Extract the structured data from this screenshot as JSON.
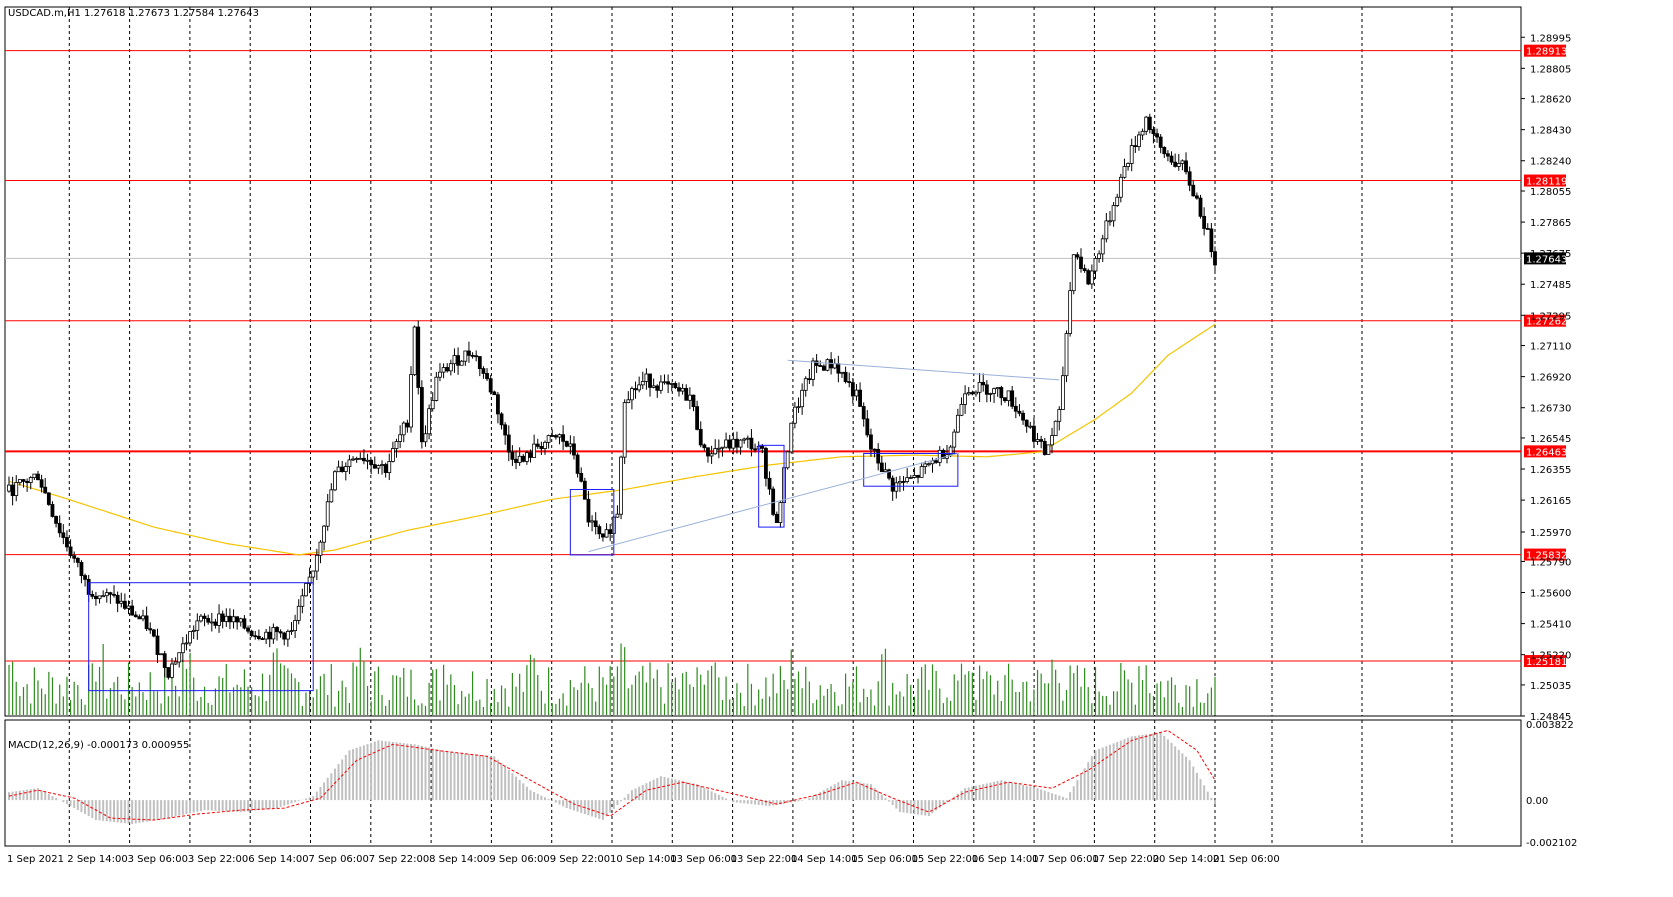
{
  "chart_data": {
    "type": "candlestick",
    "symbol_header": "USDCAD.m,H1  1.27618 1.27673 1.27584 1.27643",
    "current_price": 1.27643,
    "ylim": [
      1.24845,
      1.2918
    ],
    "price_ticks": [
      1.28995,
      1.28805,
      1.2862,
      1.2843,
      1.2824,
      1.28055,
      1.27865,
      1.27675,
      1.27485,
      1.27295,
      1.2711,
      1.2692,
      1.2673,
      1.26545,
      1.26355,
      1.26165,
      1.2597,
      1.2579,
      1.256,
      1.2541,
      1.2522,
      1.25035,
      1.24845
    ],
    "price_tick_labels": [
      "1.28995",
      "1.28805",
      "1.28620",
      "1.28430",
      "1.28240",
      "1.28055",
      "1.27865",
      "1.27675",
      "1.27485",
      "1.27295",
      "1.27110",
      "1.26920",
      "1.26730",
      "1.26545",
      "1.26355",
      "1.26165",
      "1.25970",
      "1.25790",
      "1.25600",
      "1.25410",
      "1.25220",
      "1.25035",
      "1.24845"
    ],
    "levels": [
      {
        "price": 1.28913,
        "label": "1.28913",
        "width": 1
      },
      {
        "price": 1.28119,
        "label": "1.28119",
        "width": 1
      },
      {
        "price": 1.27262,
        "label": "1.27262",
        "width": 1
      },
      {
        "price": 1.26463,
        "label": "1.26463",
        "width": 2
      },
      {
        "price": 1.25832,
        "label": "1.25832",
        "width": 1
      },
      {
        "price": 1.25181,
        "label": "1.25181",
        "width": 1
      }
    ],
    "time_labels": [
      "1 Sep 2021",
      "2 Sep 14:00",
      "3 Sep 06:00",
      "3 Sep 22:00",
      "6 Sep 14:00",
      "7 Sep 06:00",
      "7 Sep 22:00",
      "8 Sep 14:00",
      "9 Sep 06:00",
      "9 Sep 22:00",
      "10 Sep 14:00",
      "13 Sep 06:00",
      "13 Sep 22:00",
      "14 Sep 14:00",
      "15 Sep 06:00",
      "15 Sep 22:00",
      "16 Sep 14:00",
      "17 Sep 06:00",
      "17 Sep 22:00",
      "20 Sep 14:00",
      "21 Sep 06:00"
    ],
    "price_path": [
      [
        0,
        1.2622
      ],
      [
        8,
        1.2632
      ],
      [
        14,
        1.2598
      ],
      [
        22,
        1.2562
      ],
      [
        30,
        1.2555
      ],
      [
        38,
        1.254
      ],
      [
        44,
        1.2512
      ],
      [
        52,
        1.2542
      ],
      [
        60,
        1.2545
      ],
      [
        68,
        1.2535
      ],
      [
        78,
        1.2535
      ],
      [
        84,
        1.2575
      ],
      [
        90,
        1.2632
      ],
      [
        96,
        1.2645
      ],
      [
        104,
        1.2636
      ],
      [
        110,
        1.2665
      ],
      [
        112,
        1.2724
      ],
      [
        114,
        1.265
      ],
      [
        118,
        1.269
      ],
      [
        122,
        1.27
      ],
      [
        128,
        1.2708
      ],
      [
        134,
        1.268
      ],
      [
        138,
        1.2646
      ],
      [
        142,
        1.264
      ],
      [
        146,
        1.265
      ],
      [
        152,
        1.2655
      ],
      [
        156,
        1.2645
      ],
      [
        160,
        1.2605
      ],
      [
        164,
        1.259
      ],
      [
        168,
        1.261
      ],
      [
        170,
        1.268
      ],
      [
        176,
        1.269
      ],
      [
        182,
        1.2685
      ],
      [
        188,
        1.268
      ],
      [
        192,
        1.2645
      ],
      [
        198,
        1.265
      ],
      [
        204,
        1.2652
      ],
      [
        208,
        1.2645
      ],
      [
        212,
        1.26
      ],
      [
        216,
        1.2665
      ],
      [
        222,
        1.2698
      ],
      [
        228,
        1.27
      ],
      [
        234,
        1.268
      ],
      [
        238,
        1.2648
      ],
      [
        244,
        1.2625
      ],
      [
        250,
        1.263
      ],
      [
        256,
        1.2642
      ],
      [
        260,
        1.265
      ],
      [
        264,
        1.2685
      ],
      [
        270,
        1.2685
      ],
      [
        276,
        1.268
      ],
      [
        282,
        1.266
      ],
      [
        286,
        1.2645
      ],
      [
        290,
        1.2668
      ],
      [
        294,
        1.277
      ],
      [
        298,
        1.275
      ],
      [
        304,
        1.279
      ],
      [
        308,
        1.282
      ],
      [
        314,
        1.285
      ],
      [
        318,
        1.283
      ],
      [
        324,
        1.282
      ],
      [
        328,
        1.28
      ],
      [
        333,
        1.2764
      ]
    ],
    "candle_count": 334,
    "ma_path": [
      [
        0,
        1.2628
      ],
      [
        15,
        1.2618
      ],
      [
        40,
        1.26
      ],
      [
        60,
        1.259
      ],
      [
        80,
        1.2583
      ],
      [
        90,
        1.2586
      ],
      [
        110,
        1.2598
      ],
      [
        130,
        1.2607
      ],
      [
        150,
        1.2617
      ],
      [
        170,
        1.2623
      ],
      [
        190,
        1.2631
      ],
      [
        210,
        1.2638
      ],
      [
        230,
        1.2643
      ],
      [
        250,
        1.2644
      ],
      [
        270,
        1.2643
      ],
      [
        285,
        1.2646
      ],
      [
        300,
        1.2666
      ],
      [
        310,
        1.2682
      ],
      [
        320,
        1.2705
      ],
      [
        333,
        1.2724
      ]
    ],
    "volume_max": 100,
    "macd": {
      "label": "MACD(12,26,9) -0.000173 0.000955",
      "ylim": [
        -0.002102,
        0.003822
      ],
      "tick_labels": [
        "0.003822",
        "0.00",
        "-0.002102"
      ],
      "ticks": [
        0.003822,
        0,
        -0.002102
      ],
      "hist_path": [
        [
          0,
          0.0004
        ],
        [
          8,
          0.0006
        ],
        [
          16,
          -0.0002
        ],
        [
          24,
          -0.001
        ],
        [
          34,
          -0.0012
        ],
        [
          44,
          -0.0009
        ],
        [
          54,
          -0.0005
        ],
        [
          64,
          -0.0006
        ],
        [
          74,
          -0.0004
        ],
        [
          84,
          0.0002
        ],
        [
          94,
          0.0025
        ],
        [
          102,
          0.003
        ],
        [
          112,
          0.0028
        ],
        [
          122,
          0.0024
        ],
        [
          134,
          0.0022
        ],
        [
          144,
          0.0005
        ],
        [
          154,
          -0.0004
        ],
        [
          164,
          -0.001
        ],
        [
          172,
          0.0005
        ],
        [
          180,
          0.0012
        ],
        [
          190,
          0.0008
        ],
        [
          200,
          -0.0001
        ],
        [
          210,
          -0.0003
        ],
        [
          220,
          0.0
        ],
        [
          230,
          0.001
        ],
        [
          238,
          0.0008
        ],
        [
          246,
          -0.0006
        ],
        [
          254,
          -0.0008
        ],
        [
          264,
          0.0006
        ],
        [
          274,
          0.001
        ],
        [
          284,
          0.0006
        ],
        [
          292,
          0.0001
        ],
        [
          300,
          0.0025
        ],
        [
          310,
          0.0032
        ],
        [
          318,
          0.0034
        ],
        [
          326,
          0.002
        ],
        [
          333,
          -0.0002
        ]
      ],
      "signal_path": [
        [
          0,
          0.0002
        ],
        [
          8,
          0.0005
        ],
        [
          18,
          0.0001
        ],
        [
          28,
          -0.0009
        ],
        [
          40,
          -0.001
        ],
        [
          52,
          -0.0007
        ],
        [
          64,
          -0.0005
        ],
        [
          76,
          -0.0004
        ],
        [
          86,
          0.0001
        ],
        [
          96,
          0.002
        ],
        [
          106,
          0.0028
        ],
        [
          118,
          0.0025
        ],
        [
          132,
          0.0022
        ],
        [
          144,
          0.001
        ],
        [
          156,
          -0.0002
        ],
        [
          166,
          -0.0008
        ],
        [
          176,
          0.0005
        ],
        [
          186,
          0.0009
        ],
        [
          198,
          0.0004
        ],
        [
          212,
          -0.0002
        ],
        [
          224,
          0.0003
        ],
        [
          234,
          0.0009
        ],
        [
          244,
          0.0001
        ],
        [
          254,
          -0.0006
        ],
        [
          264,
          0.0004
        ],
        [
          276,
          0.0009
        ],
        [
          288,
          0.0006
        ],
        [
          298,
          0.0015
        ],
        [
          310,
          0.003
        ],
        [
          320,
          0.0035
        ],
        [
          328,
          0.0025
        ],
        [
          333,
          0.001
        ]
      ]
    }
  },
  "colors": {
    "up": "#000000",
    "down": "#000000",
    "level": "#ff0000",
    "ma": "#f5c400",
    "volume": "#2e8b1e",
    "box": "#1a1aff",
    "trend": "#9ab0d8",
    "macd_hist": "#c0c0c0",
    "macd_signal": "#ff0000",
    "current_tag": "#000000"
  }
}
